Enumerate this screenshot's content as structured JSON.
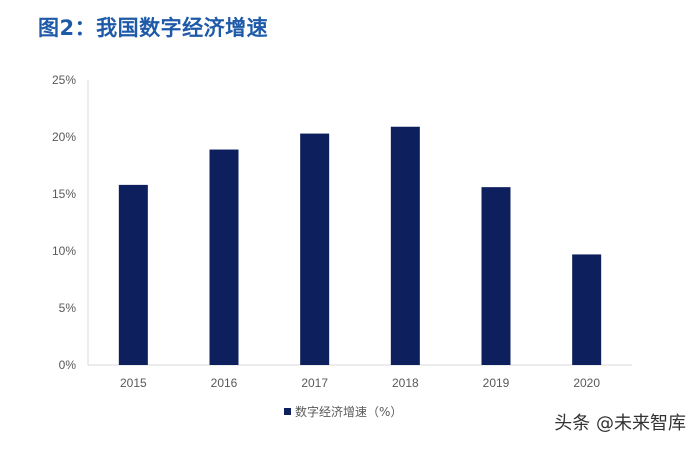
{
  "header": {
    "title": "图2：我国数字经济增速"
  },
  "watermark": {
    "text": "头条 @未来智库"
  },
  "chart_data": {
    "type": "bar",
    "title": "图2：我国数字经济增速",
    "categories": [
      "2015",
      "2016",
      "2017",
      "2018",
      "2019",
      "2020"
    ],
    "series": [
      {
        "name": "数字经济增速（%）",
        "values": [
          15.8,
          18.9,
          20.3,
          20.9,
          15.6,
          9.7
        ],
        "color": "#0d1f5c"
      }
    ],
    "y_ticks": [
      "0%",
      "5%",
      "10%",
      "15%",
      "20%",
      "25%"
    ],
    "ylim": [
      0,
      25
    ],
    "xlabel": "",
    "ylabel": "",
    "grid": false,
    "legend": "bottom",
    "colors": {
      "bar": "#0d1f5c",
      "axis": "#d9d9d9",
      "text": "#595959",
      "title": "#1e5aa8"
    }
  }
}
